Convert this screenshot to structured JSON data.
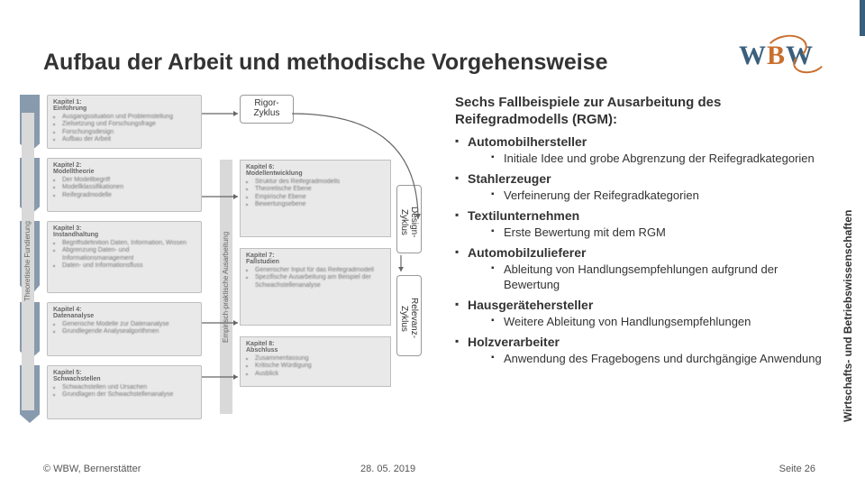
{
  "title": "Aufbau der Arbeit und methodische Vorgehensweise",
  "logo_text": {
    "w1": "W",
    "b": "B",
    "w2": "W"
  },
  "vstrip": "Wirtschafts- und Betriebswissenschaften",
  "footer": {
    "left": "© WBW, Bernerstätter",
    "mid": "28. 05. 2019",
    "right": "Seite 26"
  },
  "lead": "Sechs Fallbeispiele zur Ausarbeitung des Reifegradmodells (RGM):",
  "cases": [
    {
      "t": "Automobilhersteller",
      "sub": [
        "Initiale Idee und grobe Abgrenzung der Reifegradkategorien"
      ]
    },
    {
      "t": "Stahlerzeuger",
      "sub": [
        "Verfeinerung der Reifegradkategorien"
      ]
    },
    {
      "t": "Textilunternehmen",
      "sub": [
        "Erste Bewertung mit dem RGM"
      ]
    },
    {
      "t": "Automobilzulieferer",
      "sub": [
        "Ableitung von Handlungsempfehlungen aufgrund der Bewertung"
      ]
    },
    {
      "t": "Hausgerätehersteller",
      "sub": [
        "Weitere Ableitung von Handlungsempfehlungen"
      ]
    },
    {
      "t": "Holzverarbeiter",
      "sub": [
        "Anwendung des Fragebogens und durchgängige Anwendung"
      ]
    }
  ],
  "cycles": {
    "rigor": "Rigor-\nZyklus",
    "design": "Design-\nZyklus",
    "relev": "Relevanz-\nZyklus"
  },
  "leftlabel": "Theoretische Fundierung",
  "midlabel": "Empirisch-praktische Ausarbeitung",
  "rows": {
    "r1": {
      "k": "Kapitel 1:\nEinführung",
      "items": [
        "Ausgangssituation und Problemstellung",
        "Zielsetzung und Forschungsfrage",
        "Forschungsdesign",
        "Aufbau der Arbeit"
      ]
    },
    "r2": {
      "k": "Kapitel 2:\nModelltheorie",
      "items": [
        "Der Modellbegriff",
        "Modellklassifikationen",
        "Reifegradmodelle"
      ]
    },
    "r3": {
      "k": "Kapitel 3:\nInstandhaltung",
      "items": [
        "Begriffsdefinition Daten, Information, Wissen",
        "Abgrenzung Daten- und Informationsmanagement",
        "Daten- und Informationsfluss"
      ]
    },
    "r4": {
      "k": "Kapitel 4:\nDatenanalyse",
      "items": [
        "Generische Modelle zur Datenanalyse",
        "Grundlegende Analysealgorithmen"
      ]
    },
    "r5": {
      "k": "Kapitel 5:\nSchwachstellen",
      "items": [
        "Schwachstellen und Ursachen",
        "Grundlagen der Schwachstellenanalyse"
      ]
    },
    "rA": {
      "k": "Kapitel 6:\nModellentwicklung",
      "items": [
        "Struktur des Reifegradmodells",
        "Theoretische Ebene",
        "Empirische Ebene",
        "Bewertungsebene"
      ]
    },
    "rB": {
      "k": "Kapitel 7:\nFallstudien",
      "items": [
        "Generischer Input für das Reifegradmodell",
        "Spezifische Ausarbeitung am Beispiel der Schwachstellenanalyse"
      ]
    },
    "rC": {
      "k": "Kapitel 8:\nAbschluss",
      "items": [
        "Zusammenfassung",
        "Kritische Würdigung",
        "Ausblick"
      ]
    }
  },
  "style": {
    "accent": "#3a5f7d",
    "chevron": "#889aad",
    "box_bg": "#e9e9e9",
    "box_border": "#bfbfbf",
    "text": "#333333",
    "muted": "#777777",
    "arrow": "#666666",
    "title_fontsize": 25,
    "lead_fontsize": 15,
    "lvl1_fontsize": 14,
    "lvl2_fontsize": 13,
    "footer_fontsize": 11,
    "vstrip_fontsize": 12
  }
}
